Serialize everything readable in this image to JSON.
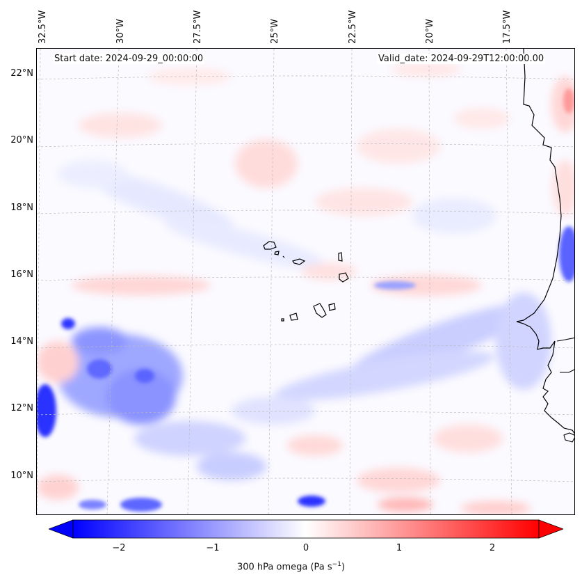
{
  "map": {
    "annotations": {
      "start": "Start date: 2024-09-29_00:00:00",
      "valid": "Valid_date: 2024-09-29T12:00:00.00"
    },
    "lon_labels": [
      "32.5°W",
      "30°W",
      "27.5°W",
      "25°W",
      "22.5°W",
      "20°W",
      "17.5°W"
    ],
    "lat_labels": [
      "22°N",
      "20°N",
      "18°N",
      "16°N",
      "14°N",
      "12°N",
      "10°N"
    ],
    "gridlines": true,
    "coastline_color": "#000000"
  },
  "colorbar": {
    "label": "300 hPa omega (Pa s",
    "label_exp": "−1",
    "label_tail": ")",
    "ticks": [
      "−2",
      "−1",
      "0",
      "1",
      "2"
    ],
    "range": [
      -2.6,
      2.6
    ],
    "colors": {
      "low": "#0000ff",
      "mid": "#ffffff",
      "high": "#ff0000"
    },
    "extend": "both"
  }
}
